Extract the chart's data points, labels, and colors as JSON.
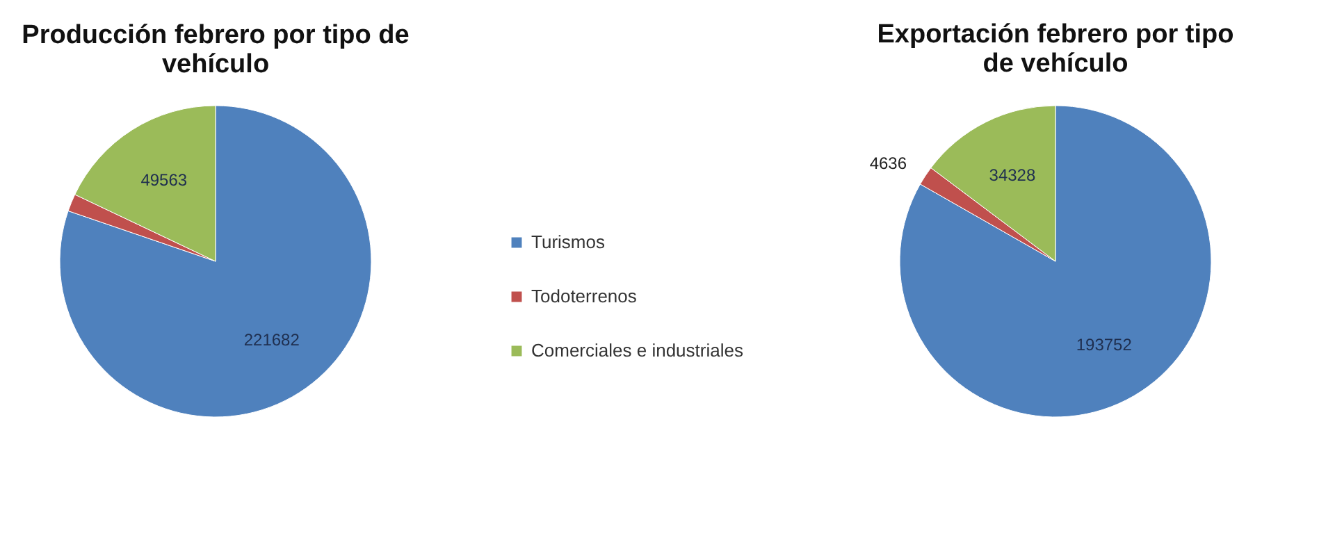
{
  "chart_data": [
    {
      "type": "pie",
      "title": "Producción febrero por tipo de vehículo",
      "categories": [
        "Turismos",
        "Todoterrenos",
        "Comerciales e industriales"
      ],
      "values": [
        221682,
        5000,
        49563
      ],
      "value_labels": [
        "221682",
        null,
        "49563"
      ],
      "colors": [
        "#4f81bd",
        "#c0504d",
        "#9bbb59"
      ],
      "legend": "right"
    },
    {
      "type": "pie",
      "title": "Exportación febrero por tipo de vehículo",
      "categories": [
        null,
        null,
        null
      ],
      "values": [
        193752,
        4636,
        34328
      ],
      "data_labels": true,
      "colors": [
        "#4f81bd",
        "#c0504d",
        "#9bbb59"
      ]
    }
  ]
}
